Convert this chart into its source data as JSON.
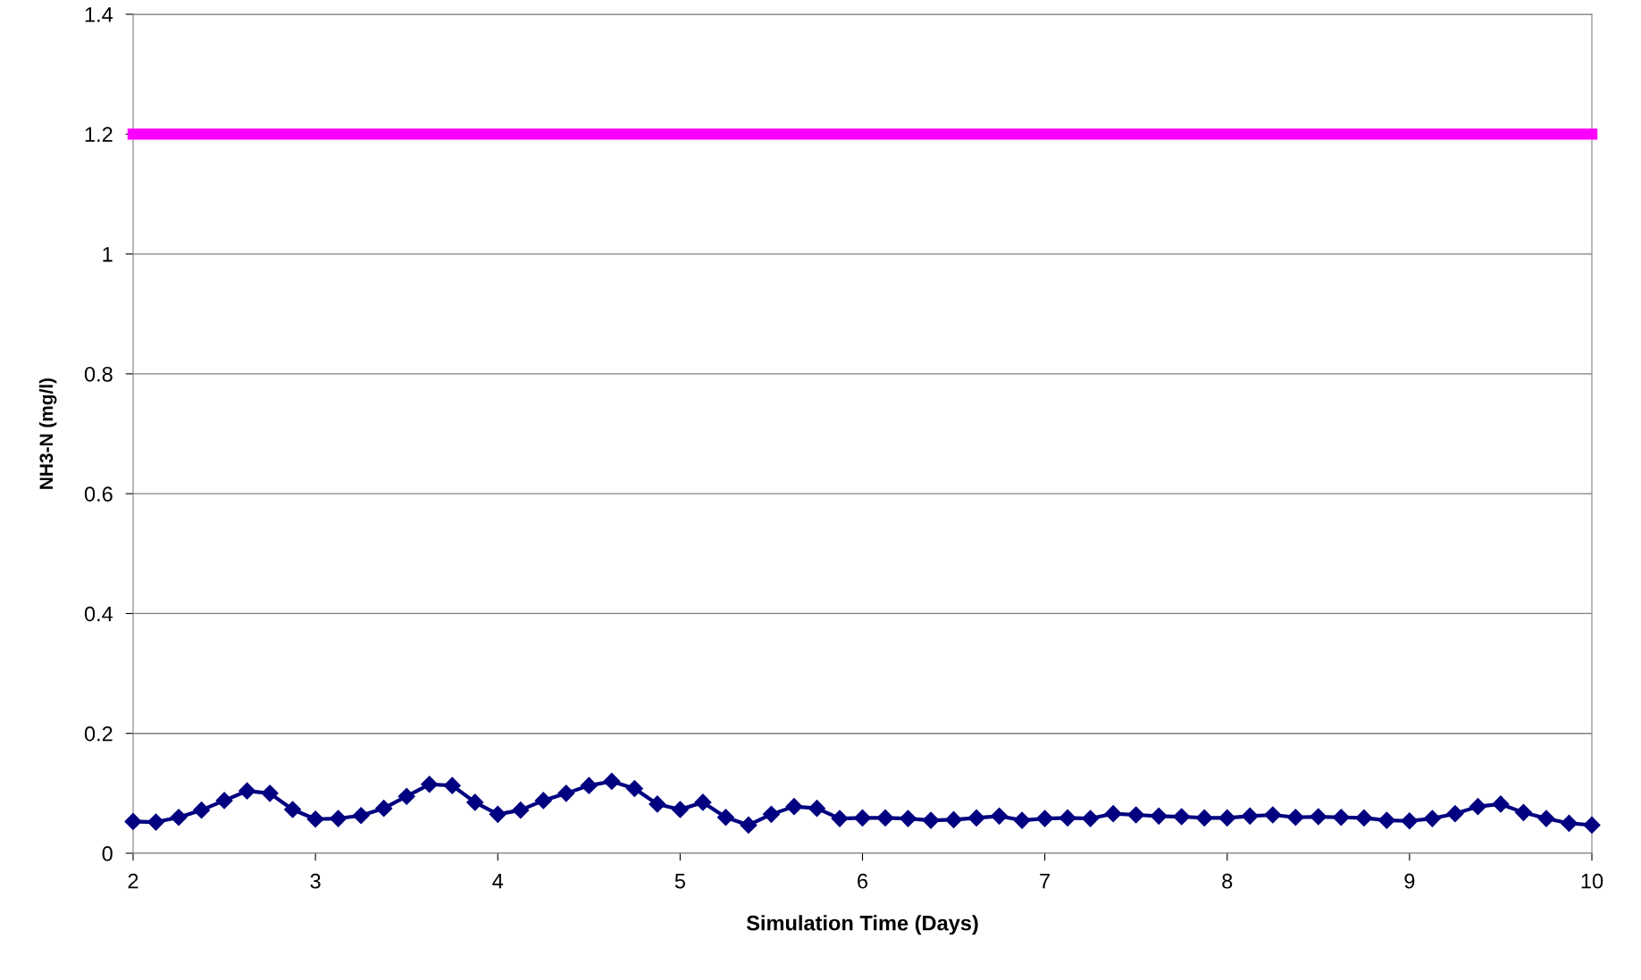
{
  "chart_data": {
    "type": "line",
    "xlabel": "Simulation Time (Days)",
    "ylabel": "NH3-N (mg/l)",
    "xlim": [
      2,
      10
    ],
    "xticks": [
      2,
      3,
      4,
      5,
      6,
      7,
      8,
      9,
      10
    ],
    "ylim": [
      0,
      1.4
    ],
    "yticks": [
      0,
      0.2,
      0.4,
      0.6,
      0.8,
      1,
      1.2,
      1.4
    ],
    "grid": "y",
    "series": [
      {
        "color": "#000080",
        "marker": "diamond",
        "x": [
          2.0,
          2.125,
          2.25,
          2.375,
          2.5,
          2.625,
          2.75,
          2.875,
          3.0,
          3.125,
          3.25,
          3.375,
          3.5,
          3.625,
          3.75,
          3.875,
          4.0,
          4.125,
          4.25,
          4.375,
          4.5,
          4.625,
          4.75,
          4.875,
          5.0,
          5.125,
          5.25,
          5.375,
          5.5,
          5.625,
          5.75,
          5.875,
          6.0,
          6.125,
          6.25,
          6.375,
          6.5,
          6.625,
          6.75,
          6.875,
          7.0,
          7.125,
          7.25,
          7.375,
          7.5,
          7.625,
          7.75,
          7.875,
          8.0,
          8.125,
          8.25,
          8.375,
          8.5,
          8.625,
          8.75,
          8.875,
          9.0,
          9.125,
          9.25,
          9.375,
          9.5,
          9.625,
          9.75,
          9.875,
          10.0
        ],
        "values": [
          0.053,
          0.052,
          0.06,
          0.072,
          0.088,
          0.104,
          0.1,
          0.073,
          0.057,
          0.058,
          0.063,
          0.075,
          0.095,
          0.115,
          0.113,
          0.085,
          0.065,
          0.072,
          0.088,
          0.1,
          0.113,
          0.12,
          0.108,
          0.082,
          0.073,
          0.085,
          0.06,
          0.047,
          0.065,
          0.078,
          0.075,
          0.058,
          0.059,
          0.059,
          0.058,
          0.055,
          0.056,
          0.059,
          0.062,
          0.055,
          0.058,
          0.059,
          0.058,
          0.066,
          0.064,
          0.062,
          0.061,
          0.059,
          0.059,
          0.062,
          0.064,
          0.06,
          0.061,
          0.06,
          0.059,
          0.055,
          0.054,
          0.058,
          0.066,
          0.078,
          0.082,
          0.068,
          0.058,
          0.05,
          0.047
        ]
      },
      {
        "color": "#ff00ff",
        "marker": "none",
        "x": [
          2,
          10
        ],
        "values": [
          1.2,
          1.2
        ]
      }
    ]
  }
}
